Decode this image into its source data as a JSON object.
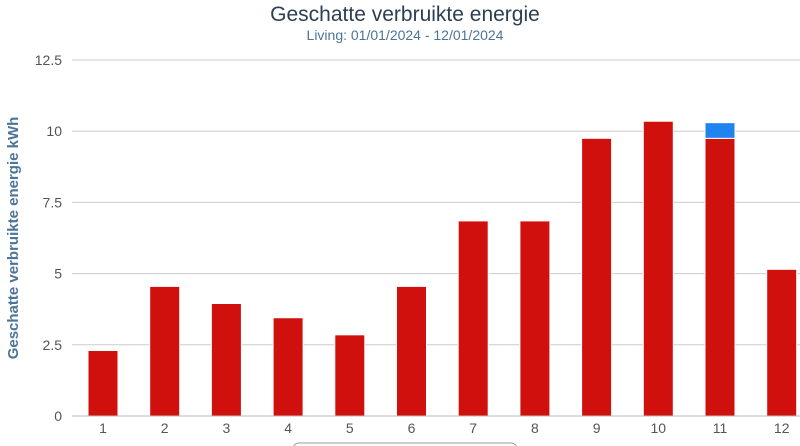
{
  "chart_data": {
    "type": "bar",
    "title": "Geschatte verbruikte energie",
    "subtitle": "Living: 01/01/2024 - 12/01/2024",
    "ylabel": "Geschatte verbruikte energie kWh",
    "xlabel": "",
    "categories": [
      "1",
      "2",
      "3",
      "4",
      "5",
      "6",
      "7",
      "8",
      "9",
      "10",
      "11",
      "12"
    ],
    "yticks": [
      "0",
      "2.5",
      "5",
      "7.5",
      "10",
      "12.5"
    ],
    "ylim": [
      0,
      12.5
    ],
    "stacked": true,
    "grid": true,
    "series": [
      {
        "values": [
          2.3,
          4.55,
          3.95,
          3.45,
          2.85,
          4.55,
          6.85,
          6.85,
          9.75,
          10.35,
          9.75,
          5.15
        ],
        "color": "#d0100c"
      },
      {
        "values": [
          0,
          0,
          0,
          0,
          0,
          0,
          0,
          0,
          0,
          0,
          0.55,
          0
        ],
        "color": "#1f84f0"
      }
    ]
  }
}
